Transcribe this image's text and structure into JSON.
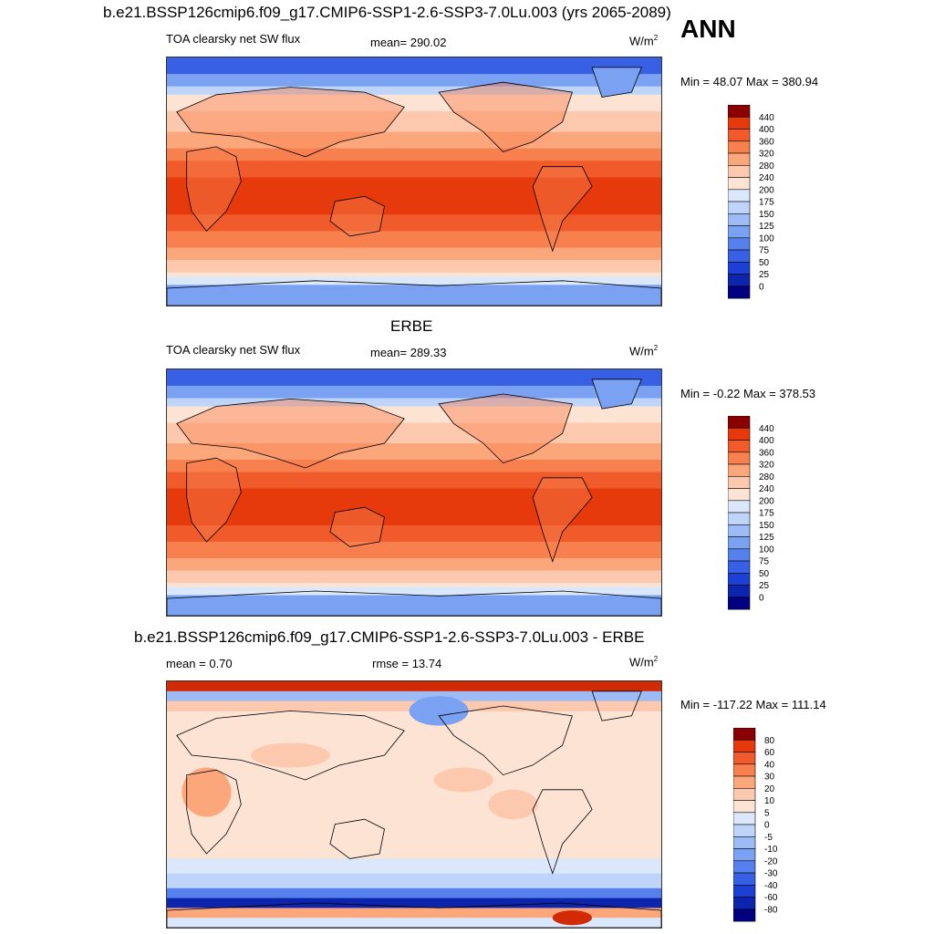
{
  "header": {
    "title": "b.e21.BSSP126cmip6.f09_g17.CMIP6-SSP1-2.6-SSP3-7.0Lu.003 (yrs 2065-2089)",
    "season": "ANN"
  },
  "colors": {
    "reds": [
      "#fde3d3",
      "#fdc9ae",
      "#fca67c",
      "#f8804f",
      "#f15a2a",
      "#e63a0c",
      "#d22a04",
      "#b21a00",
      "#8a0000"
    ],
    "blues": [
      "#dbe8fb",
      "#bed4f9",
      "#9dbcf6",
      "#7ba1f2",
      "#5680ec",
      "#3760e4",
      "#1c3fd5",
      "#0d24ac",
      "#000080"
    ],
    "land_outline": "#000000"
  },
  "chart_data": [
    {
      "type": "heatmap",
      "field": "model",
      "left_label": "TOA clearsky net SW flux",
      "center_label": "mean= 290.02",
      "units_base": "W/m",
      "units_exp": "2",
      "minmax": "Min =  48.07 Max = 380.94",
      "colorbar_labels": [
        "440",
        "400",
        "360",
        "320",
        "280",
        "240",
        "200",
        "175",
        "150",
        "125",
        "100",
        "75",
        "50",
        "25",
        "0"
      ]
    },
    {
      "type": "heatmap",
      "field": "obs",
      "title": "ERBE",
      "left_label": "TOA clearsky net SW flux",
      "center_label": "mean= 289.33",
      "units_base": "W/m",
      "units_exp": "2",
      "minmax": "Min =  -0.22 Max = 378.53",
      "colorbar_labels": [
        "440",
        "400",
        "360",
        "320",
        "280",
        "240",
        "200",
        "175",
        "150",
        "125",
        "100",
        "75",
        "50",
        "25",
        "0"
      ]
    },
    {
      "type": "heatmap",
      "field": "diff",
      "title": "b.e21.BSSP126cmip6.f09_g17.CMIP6-SSP1-2.6-SSP3-7.0Lu.003 - ERBE",
      "left_label": "mean =   0.70",
      "center_label": "rmse =  13.74",
      "units_base": "W/m",
      "units_exp": "2",
      "minmax": "Min = -117.22 Max = 111.14",
      "colorbar_labels": [
        "80",
        "60",
        "40",
        "30",
        "20",
        "10",
        "5",
        "0",
        "-5",
        "-10",
        "-20",
        "-30",
        "-40",
        "-60",
        "-80"
      ]
    }
  ]
}
